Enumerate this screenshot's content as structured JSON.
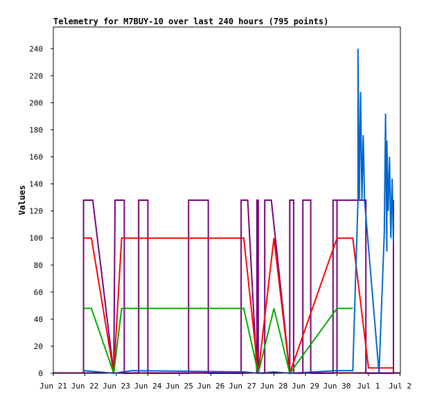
{
  "chart_data": {
    "type": "line",
    "title": "Telemetry for M7BUY-10 over last 240 hours (795 points)",
    "ylabel": "Values",
    "xlabel": "",
    "ylim": [
      0,
      256
    ],
    "xlim_days": [
      "Jun 21",
      "Jul 2"
    ],
    "x_ticks": [
      "Jun 21",
      "Jun 22",
      "Jun 23",
      "Jun 24",
      "Jun 25",
      "Jun 26",
      "Jun 27",
      "Jun 28",
      "Jun 29",
      "Jun 30",
      "Jul 1",
      "Jul 2"
    ],
    "y_ticks": [
      0,
      20,
      40,
      60,
      80,
      100,
      120,
      140,
      160,
      180,
      200,
      220,
      240
    ],
    "grid": false,
    "legend": "none",
    "series": [
      {
        "color": "#770077",
        "points": [
          [
            "Jun 21 23:00",
            0
          ],
          [
            "Jun 21 23:00",
            128
          ],
          [
            "Jun 22 06:00",
            128
          ],
          [
            "Jun 22 22:00",
            0
          ],
          [
            "Jun 22 23:00",
            128
          ],
          [
            "Jun 23 06:00",
            128
          ],
          [
            "Jun 23 06:00",
            0
          ],
          [
            "Jun 23 17:00",
            0
          ],
          [
            "Jun 23 17:00",
            128
          ],
          [
            "Jun 24 00:00",
            128
          ],
          [
            "Jun 24 00:00",
            0
          ],
          [
            "Jun 25 07:00",
            0
          ],
          [
            "Jun 25 07:00",
            128
          ],
          [
            "Jun 25 22:00",
            128
          ],
          [
            "Jun 25 22:00",
            0
          ],
          [
            "Jun 26 23:00",
            0
          ],
          [
            "Jun 26 23:00",
            128
          ],
          [
            "Jun 27 04:00",
            128
          ],
          [
            "Jun 27 11:00",
            0
          ],
          [
            "Jun 27 11:00",
            128
          ],
          [
            "Jun 27 12:00",
            128
          ],
          [
            "Jun 27 12:00",
            0
          ],
          [
            "Jun 27 17:00",
            0
          ],
          [
            "Jun 27 17:00",
            128
          ],
          [
            "Jun 27 22:00",
            128
          ],
          [
            "Jun 28 12:00",
            0
          ],
          [
            "Jun 28 12:00",
            128
          ],
          [
            "Jun 28 15:00",
            128
          ],
          [
            "Jun 28 15:00",
            0
          ],
          [
            "Jun 28 22:00",
            0
          ],
          [
            "Jun 28 22:00",
            128
          ],
          [
            "Jun 29 04:00",
            128
          ],
          [
            "Jun 29 04:00",
            0
          ],
          [
            "Jun 29 21:00",
            0
          ],
          [
            "Jun 29 21:00",
            128
          ],
          [
            "Jun 30 00:00",
            128
          ],
          [
            "Jun 30 00:00",
            0
          ],
          [
            "Jun 30 00:00",
            0
          ],
          [
            "Jun 30 00:00",
            128
          ],
          [
            "Jun 30 22:00",
            128
          ],
          [
            "Jun 30 22:00",
            0
          ],
          [
            "Jul 1 19:00",
            0
          ],
          [
            "Jul 1 19:00",
            128
          ]
        ]
      },
      {
        "color": "#ff0000",
        "points": [
          [
            "Jun 21 23:00",
            100
          ],
          [
            "Jun 22 05:00",
            100
          ],
          [
            "Jun 22 22:00",
            0
          ],
          [
            "Jun 23 04:00",
            100
          ],
          [
            "Jun 23 12:00",
            100
          ],
          [
            "Jun 27 01:00",
            100
          ],
          [
            "Jun 27 12:00",
            0
          ],
          [
            "Jun 28 00:00",
            100
          ],
          [
            "Jun 28 12:00",
            0
          ],
          [
            "Jun 30 00:00",
            100
          ],
          [
            "Jun 30 12:00",
            100
          ],
          [
            "Jul 1 00:00",
            4
          ],
          [
            "Jul 1 19:00",
            4
          ]
        ]
      },
      {
        "color": "#00aa00",
        "points": [
          [
            "Jun 21 23:00",
            48
          ],
          [
            "Jun 22 05:00",
            48
          ],
          [
            "Jun 22 22:00",
            0
          ],
          [
            "Jun 23 04:00",
            48
          ],
          [
            "Jun 23 12:00",
            48
          ],
          [
            "Jun 27 01:00",
            48
          ],
          [
            "Jun 27 12:00",
            0
          ],
          [
            "Jun 28 00:00",
            48
          ],
          [
            "Jun 28 12:00",
            0
          ],
          [
            "Jun 30 00:00",
            48
          ],
          [
            "Jun 30 12:00",
            48
          ]
        ]
      },
      {
        "color": "#0066cc",
        "points": [
          [
            "Jun 21 23:00",
            2
          ],
          [
            "Jun 22 22:00",
            0
          ],
          [
            "Jun 23 12:00",
            2
          ],
          [
            "Jun 27 01:00",
            1
          ],
          [
            "Jun 27 12:00",
            0
          ],
          [
            "Jun 28 00:00",
            1
          ],
          [
            "Jun 28 12:00",
            0
          ],
          [
            "Jun 30 00:00",
            2
          ],
          [
            "Jun 30 12:00",
            2
          ],
          [
            "Jun 30 16:00",
            128
          ],
          [
            "Jun 30 16:00",
            240
          ],
          [
            "Jun 30 17:00",
            128
          ],
          [
            "Jun 30 18:00",
            208
          ],
          [
            "Jun 30 19:00",
            128
          ],
          [
            "Jun 30 20:00",
            176
          ],
          [
            "Jun 30 21:00",
            128
          ],
          [
            "Jul 1 08:00",
            0
          ],
          [
            "Jul 1 12:00",
            104
          ],
          [
            "Jul 1 13:00",
            192
          ],
          [
            "Jul 1 14:00",
            90
          ],
          [
            "Jul 1 14:00",
            172
          ],
          [
            "Jul 1 15:00",
            120
          ],
          [
            "Jul 1 16:00",
            160
          ],
          [
            "Jul 1 17:00",
            100
          ],
          [
            "Jul 1 18:00",
            144
          ],
          [
            "Jul 1 19:00",
            96
          ]
        ]
      }
    ]
  }
}
